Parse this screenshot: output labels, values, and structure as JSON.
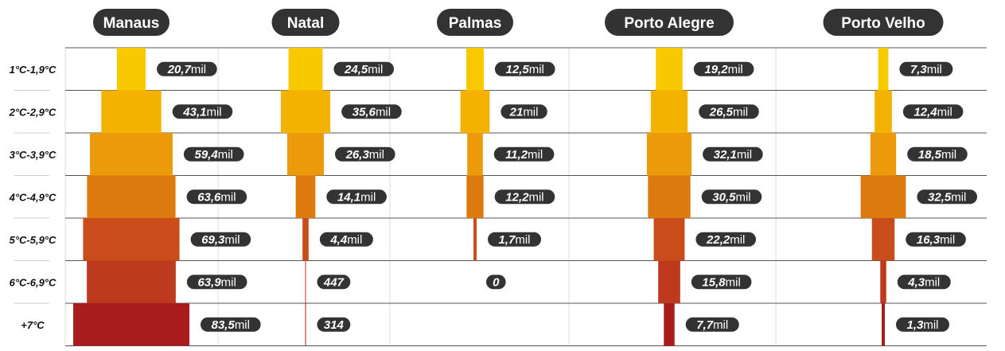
{
  "chart_data": {
    "type": "bar",
    "orientation": "horizontal-centered",
    "unit": "mil",
    "categories": [
      "1°C-1,9°C",
      "2°C-2,9°C",
      "3°C-3,9°C",
      "4°C-4,9°C",
      "5°C-5,9°C",
      "6°C-6,9°C",
      "+7°C"
    ],
    "colors": [
      "#f8c900",
      "#f3b200",
      "#ea9a0a",
      "#dc7a10",
      "#c94d1b",
      "#bd3a1e",
      "#a91c1e"
    ],
    "series": [
      {
        "name": "Manaus",
        "values": [
          20700,
          43100,
          59400,
          63600,
          69300,
          63900,
          83500
        ],
        "labels": [
          [
            "20,7",
            "mil"
          ],
          [
            "43,1",
            "mil"
          ],
          [
            "59,4",
            "mil"
          ],
          [
            "63,6",
            "mil"
          ],
          [
            "69,3",
            "mil"
          ],
          [
            "63,9",
            "mil"
          ],
          [
            "83,5",
            "mil"
          ]
        ]
      },
      {
        "name": "Natal",
        "values": [
          24500,
          35600,
          26300,
          14100,
          4400,
          447,
          314
        ],
        "labels": [
          [
            "24,5",
            "mil"
          ],
          [
            "35,6",
            "mil"
          ],
          [
            "26,3",
            "mil"
          ],
          [
            "14,1",
            "mil"
          ],
          [
            "4,4",
            "mil"
          ],
          [
            "447",
            ""
          ],
          [
            "314",
            ""
          ]
        ]
      },
      {
        "name": "Palmas",
        "values": [
          12500,
          21000,
          11200,
          12200,
          1700,
          0,
          null
        ],
        "labels": [
          [
            "12,5",
            "mil"
          ],
          [
            "21",
            "mil"
          ],
          [
            "11,2",
            "mil"
          ],
          [
            "12,2",
            "mil"
          ],
          [
            "1,7",
            "mil"
          ],
          [
            "0",
            ""
          ],
          null
        ]
      },
      {
        "name": "Porto Alegre",
        "values": [
          19200,
          26500,
          32100,
          30500,
          22200,
          15800,
          7700
        ],
        "labels": [
          [
            "19,2",
            "mil"
          ],
          [
            "26,5",
            "mil"
          ],
          [
            "32,1",
            "mil"
          ],
          [
            "30,5",
            "mil"
          ],
          [
            "22,2",
            "mil"
          ],
          [
            "15,8",
            "mil"
          ],
          [
            "7,7",
            "mil"
          ]
        ]
      },
      {
        "name": "Porto Velho",
        "values": [
          7300,
          12400,
          18500,
          32500,
          16300,
          4300,
          1300
        ],
        "labels": [
          [
            "7,3",
            "mil"
          ],
          [
            "12,4",
            "mil"
          ],
          [
            "18,5",
            "mil"
          ],
          [
            "32,5",
            "mil"
          ],
          [
            "16,3",
            "mil"
          ],
          [
            "4,3",
            "mil"
          ],
          [
            "1,3",
            "mil"
          ]
        ]
      }
    ]
  }
}
